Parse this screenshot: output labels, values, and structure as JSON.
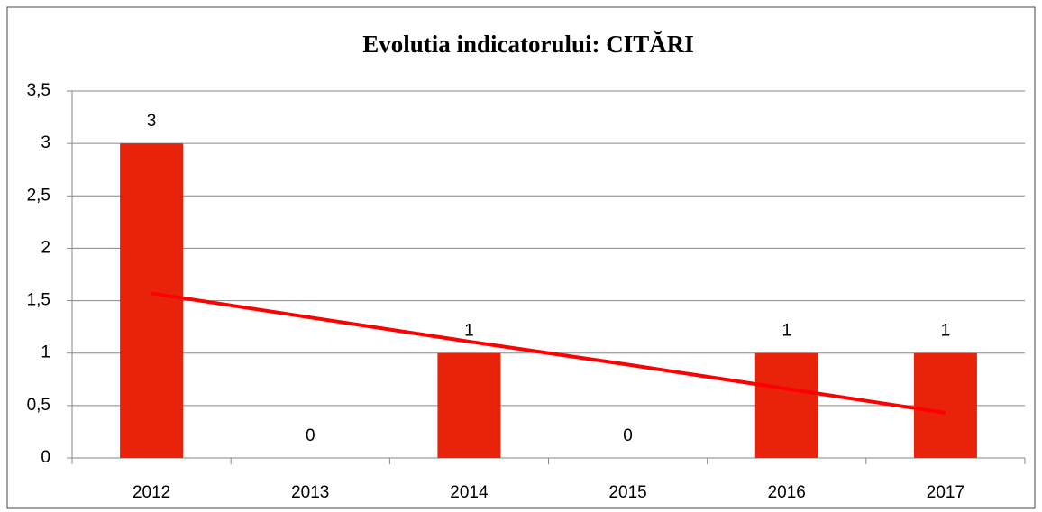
{
  "chart_data": {
    "type": "bar",
    "title": "Evolutia indicatorului: CITĂRI",
    "categories": [
      "2012",
      "2013",
      "2014",
      "2015",
      "2016",
      "2017"
    ],
    "values": [
      3,
      0,
      1,
      0,
      1,
      1
    ],
    "color": "#e8230a",
    "trendline": {
      "color": "#ff0000",
      "values": [
        1.57,
        1.34,
        1.11,
        0.89,
        0.66,
        0.43
      ]
    },
    "ylim": [
      0,
      3.5
    ],
    "yticks": [
      0,
      {
        "value": 0.5,
        "label": "0,5"
      },
      1,
      {
        "value": 1.5,
        "label": "1,5"
      },
      2,
      {
        "value": 2.5,
        "label": "2,5"
      },
      3,
      {
        "value": 3.5,
        "label": "3,5"
      }
    ],
    "grid": true
  }
}
